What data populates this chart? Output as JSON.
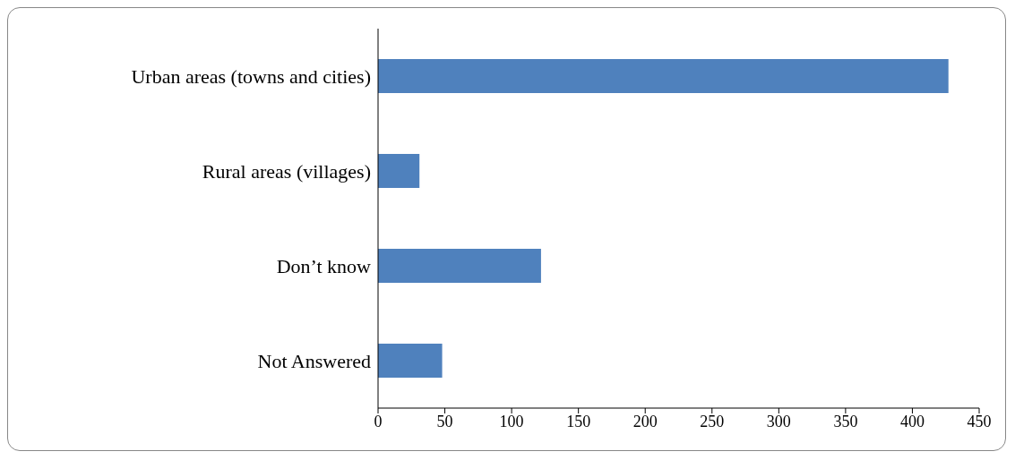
{
  "chart_data": {
    "type": "bar",
    "orientation": "horizontal",
    "categories": [
      "Urban areas (towns and cities)",
      "Rural areas (villages)",
      "Don’t know",
      "Not Answered"
    ],
    "values": [
      427,
      31,
      122,
      48
    ],
    "color": "#4f81bd",
    "xlim": [
      0,
      450
    ],
    "xticks": [
      0,
      50,
      100,
      150,
      200,
      250,
      300,
      350,
      400,
      450
    ],
    "grid": false
  }
}
